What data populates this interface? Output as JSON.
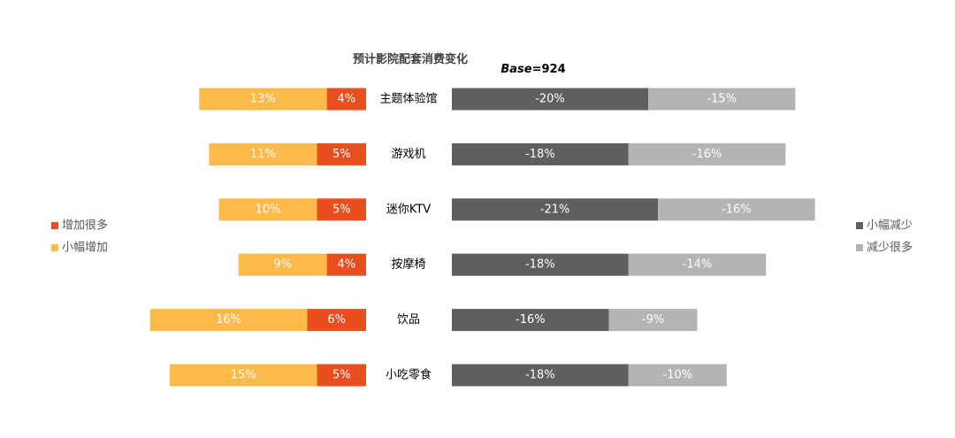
{
  "chart_data": {
    "type": "bar",
    "subtype": "diverging-stacked-horizontal",
    "title": "预计影院配套消费变化",
    "base_label": "Base",
    "base_value": "=924",
    "categories": [
      "主题体验馆",
      "游戏机",
      "迷你KTV",
      "按摩椅",
      "饮品",
      "小吃零食"
    ],
    "series": [
      {
        "name": "增加很多",
        "side": "left",
        "color": "#E84E1E",
        "values": [
          4,
          5,
          5,
          4,
          6,
          5
        ],
        "labels": [
          "4%",
          "5%",
          "5%",
          "4%",
          "6%",
          "5%"
        ]
      },
      {
        "name": "小幅增加",
        "side": "left",
        "color": "#FDB94A",
        "values": [
          13,
          11,
          10,
          9,
          16,
          15
        ],
        "labels": [
          "13%",
          "11%",
          "10%",
          "9%",
          "16%",
          "15%"
        ]
      },
      {
        "name": "小幅减少",
        "side": "right",
        "color": "#5F5F5F",
        "values": [
          -20,
          -18,
          -21,
          -18,
          -16,
          -18
        ],
        "labels": [
          "-20%",
          "-18%",
          "-21%",
          "-18%",
          "-16%",
          "-18%"
        ]
      },
      {
        "name": "减少很多",
        "side": "right",
        "color": "#B4B4B4",
        "values": [
          -15,
          -16,
          -16,
          -14,
          -9,
          -10
        ],
        "labels": [
          "-15%",
          "-16%",
          "-16%",
          "-14%",
          "-9%",
          "-10%"
        ]
      }
    ],
    "legend_left": [
      "增加很多",
      "小幅增加"
    ],
    "legend_right": [
      "小幅减少",
      "减少很多"
    ]
  }
}
